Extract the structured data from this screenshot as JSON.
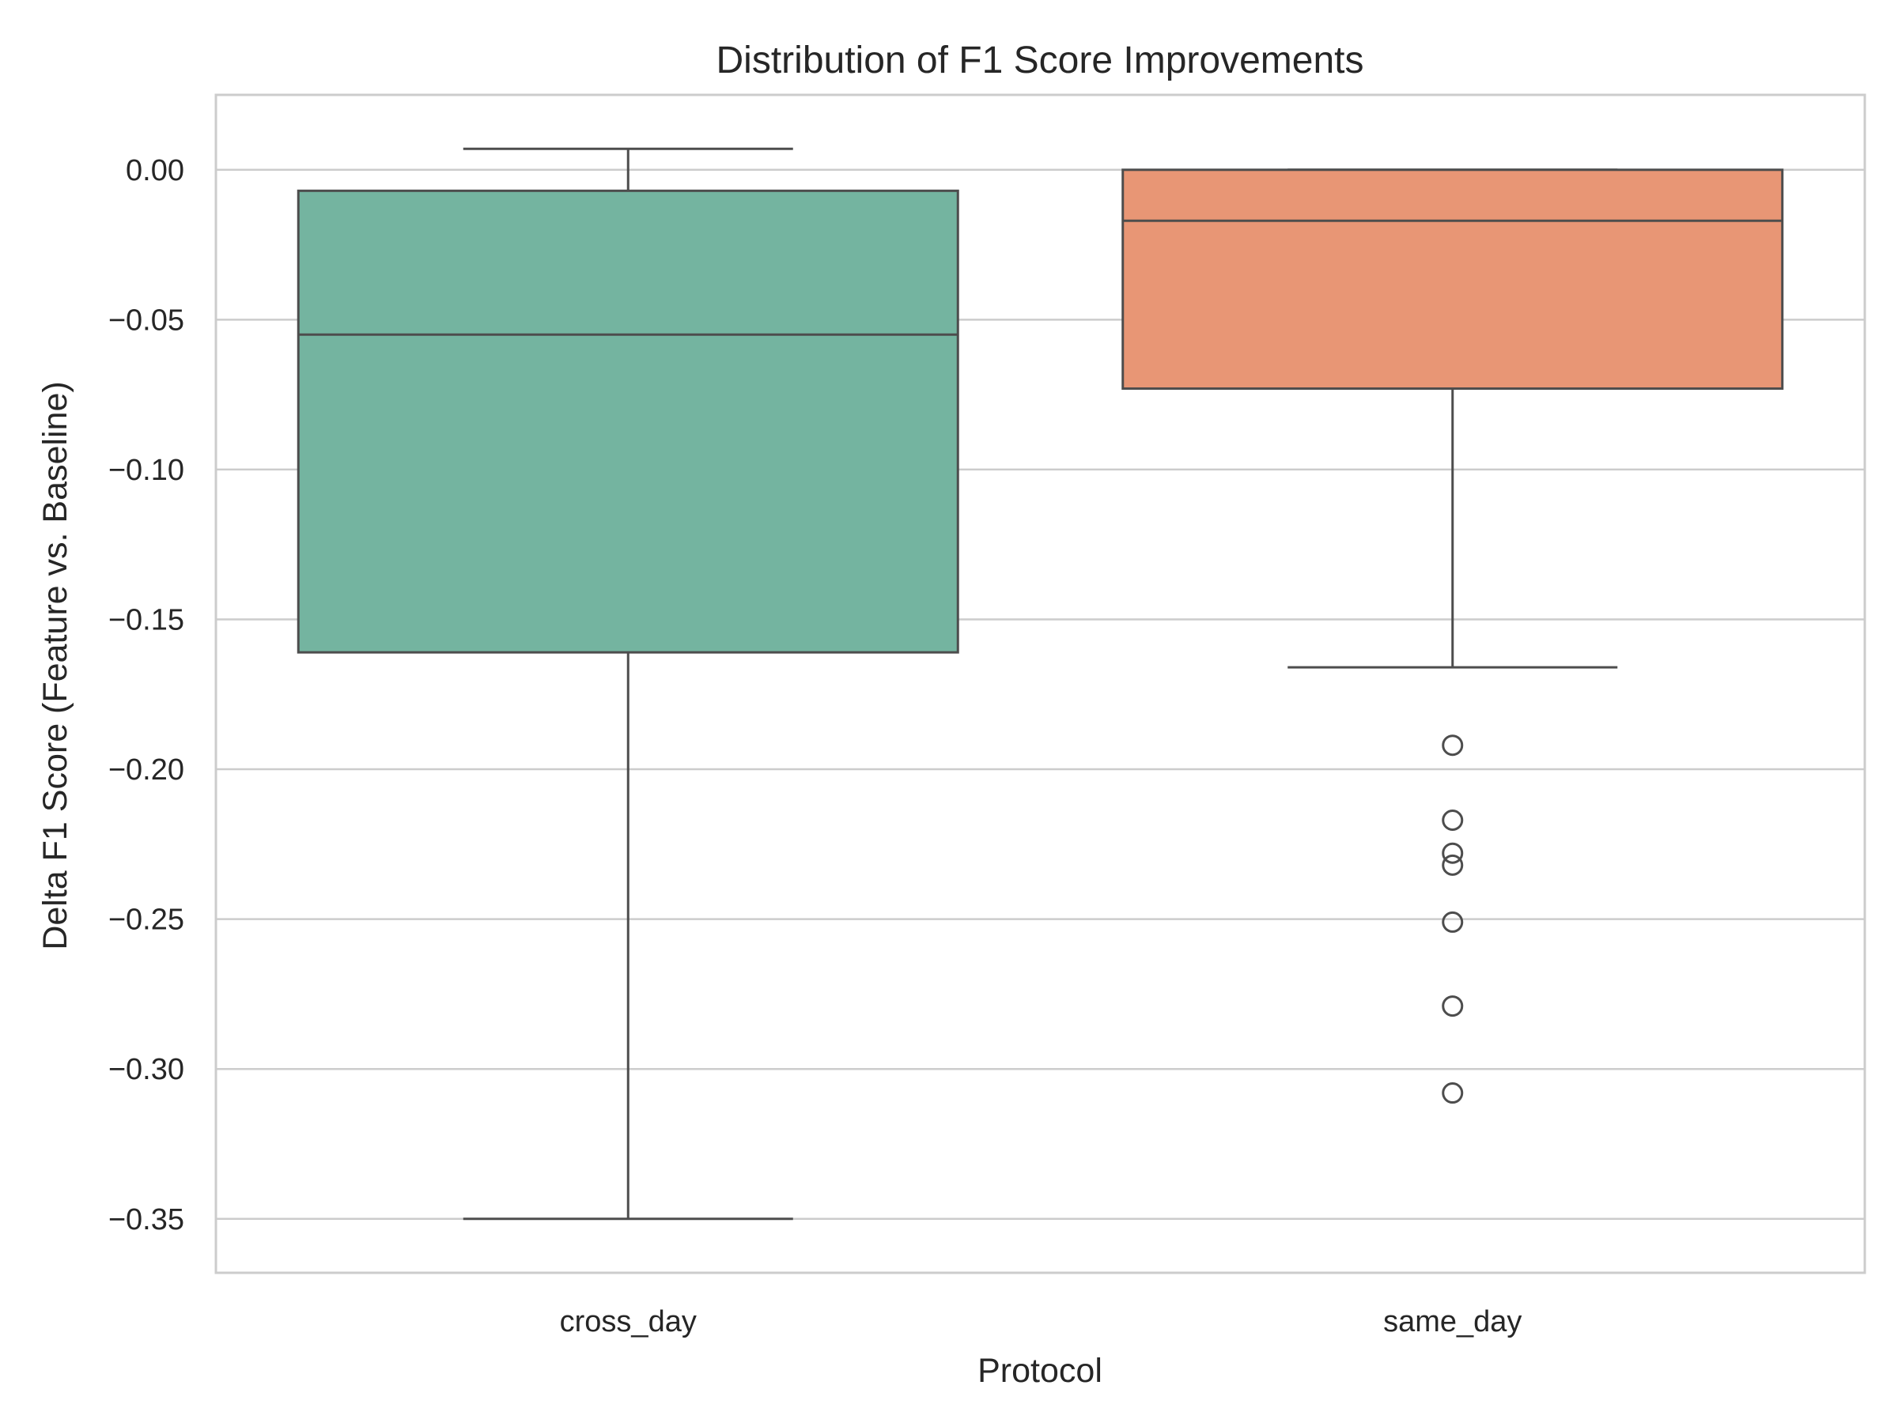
{
  "chart_data": {
    "type": "box",
    "title": "Distribution of F1 Score Improvements",
    "xlabel": "Protocol",
    "ylabel": "Delta F1 Score (Feature vs. Baseline)",
    "ylim": [
      -0.368,
      0.025
    ],
    "yticks": [
      0.0,
      -0.05,
      -0.1,
      -0.15,
      -0.2,
      -0.25,
      -0.3,
      -0.35
    ],
    "ytick_labels": [
      "0.00",
      "−0.05",
      "−0.10",
      "−0.15",
      "−0.20",
      "−0.25",
      "−0.30",
      "−0.35"
    ],
    "grid": true,
    "categories": [
      "cross_day",
      "same_day"
    ],
    "boxes": [
      {
        "category": "cross_day",
        "whisker_high": 0.007,
        "q3": -0.007,
        "median": -0.055,
        "q1": -0.161,
        "whisker_low": -0.35,
        "outliers": [],
        "color": "#74b4a0"
      },
      {
        "category": "same_day",
        "whisker_high": 0.0,
        "q3": 0.0,
        "median": -0.017,
        "q1": -0.073,
        "whisker_low": -0.166,
        "outliers": [
          -0.192,
          -0.217,
          -0.228,
          -0.232,
          -0.251,
          -0.279,
          -0.308
        ],
        "color": "#e89675"
      }
    ]
  },
  "colors": {
    "edge": "#4d4d4d",
    "grid": "#cccccc",
    "frame": "#cccccc"
  }
}
